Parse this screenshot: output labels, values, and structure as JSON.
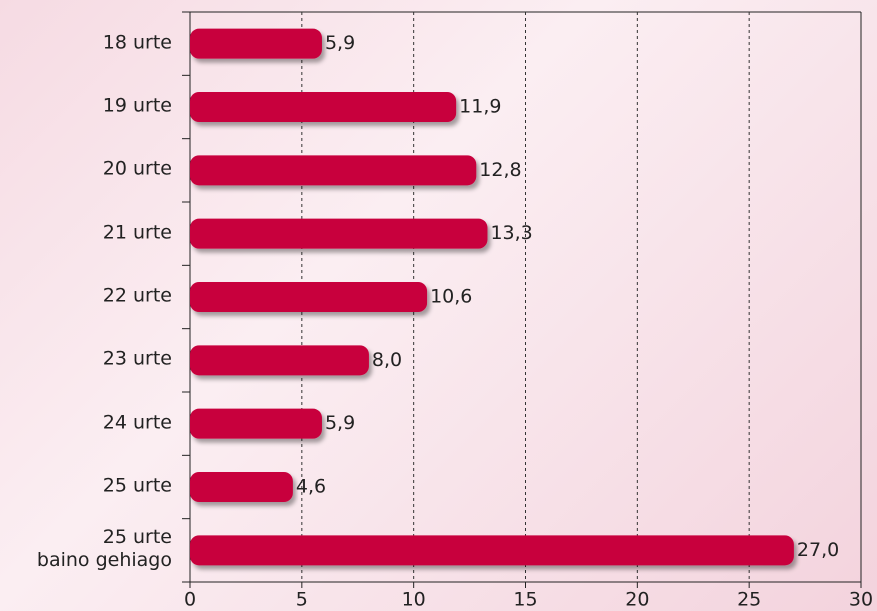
{
  "chart_data": {
    "type": "bar",
    "orientation": "horizontal",
    "categories": [
      "18 urte",
      "19 urte",
      "20 urte",
      "21 urte",
      "22 urte",
      "23 urte",
      "24 urte",
      "25 urte",
      "25 urte\nbaino gehiago"
    ],
    "values": [
      5.9,
      11.9,
      12.8,
      13.3,
      10.6,
      8.0,
      5.9,
      4.6,
      27.0
    ],
    "value_labels": [
      "5,9",
      "11,9",
      "12,8",
      "13,3",
      "10,6",
      "8,0",
      "5,9",
      "4,6",
      "27,0"
    ],
    "color": "#c8003c",
    "xlim": [
      0,
      30
    ],
    "xticks": [
      0,
      5,
      10,
      15,
      20,
      25,
      30
    ],
    "grid": true
  }
}
